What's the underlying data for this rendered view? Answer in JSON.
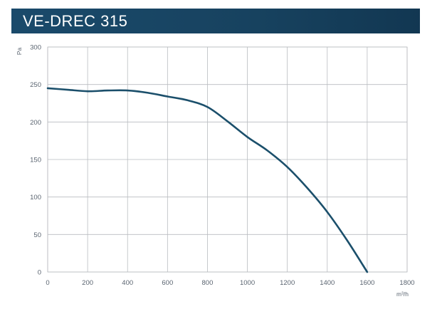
{
  "header": {
    "title": "VE-DREC 315",
    "background_color": "#17425f"
  },
  "chart_data": {
    "type": "line",
    "title": "VE-DREC 315",
    "xlabel": "m³/h",
    "ylabel": "Pa",
    "xlim": [
      0,
      1800
    ],
    "ylim": [
      0,
      300
    ],
    "x_ticks": [
      0,
      200,
      400,
      600,
      800,
      1000,
      1200,
      1400,
      1600,
      1800
    ],
    "y_ticks": [
      0,
      50,
      100,
      150,
      200,
      250,
      300
    ],
    "grid": true,
    "legend": "none",
    "series": [
      {
        "color": "#1b4f6b",
        "x": [
          0,
          100,
          200,
          300,
          400,
          500,
          600,
          700,
          800,
          900,
          1000,
          1100,
          1200,
          1300,
          1400,
          1500,
          1600
        ],
        "y": [
          245,
          243,
          241,
          242,
          242,
          239,
          234,
          229,
          220,
          201,
          180,
          162,
          140,
          112,
          80,
          42,
          0
        ]
      }
    ]
  }
}
